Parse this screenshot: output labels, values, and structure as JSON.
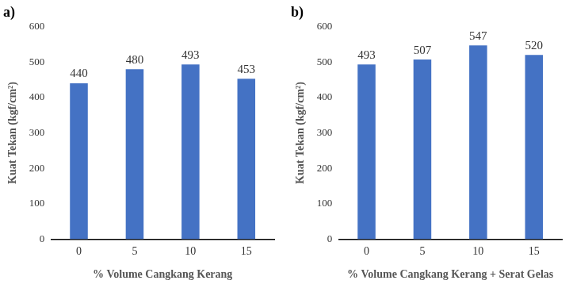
{
  "chart_data": [
    {
      "type": "bar",
      "title": "a)",
      "x_label": "% Volume Cangkang Kerang",
      "y_label": "Kuat Tekan (kgf/cm²)",
      "categories": [
        "0",
        "5",
        "10",
        "15"
      ],
      "values": [
        440,
        480,
        493,
        453
      ],
      "color": "#4472c4",
      "ylim": [
        0,
        600
      ],
      "yticks": [
        0,
        100,
        200,
        300,
        400,
        500,
        600
      ],
      "grid": false,
      "data_labels": true
    },
    {
      "type": "bar",
      "title": "b)",
      "x_label": "% Volume Cangkang Kerang + Serat Gelas",
      "y_label": "Kuat Tekan (kgf/cm²)",
      "categories": [
        "0",
        "5",
        "10",
        "15"
      ],
      "values": [
        493,
        507,
        547,
        520
      ],
      "color": "#4472c4",
      "ylim": [
        0,
        600
      ],
      "yticks": [
        0,
        100,
        200,
        300,
        400,
        500,
        600
      ],
      "grid": false,
      "data_labels": true
    }
  ]
}
